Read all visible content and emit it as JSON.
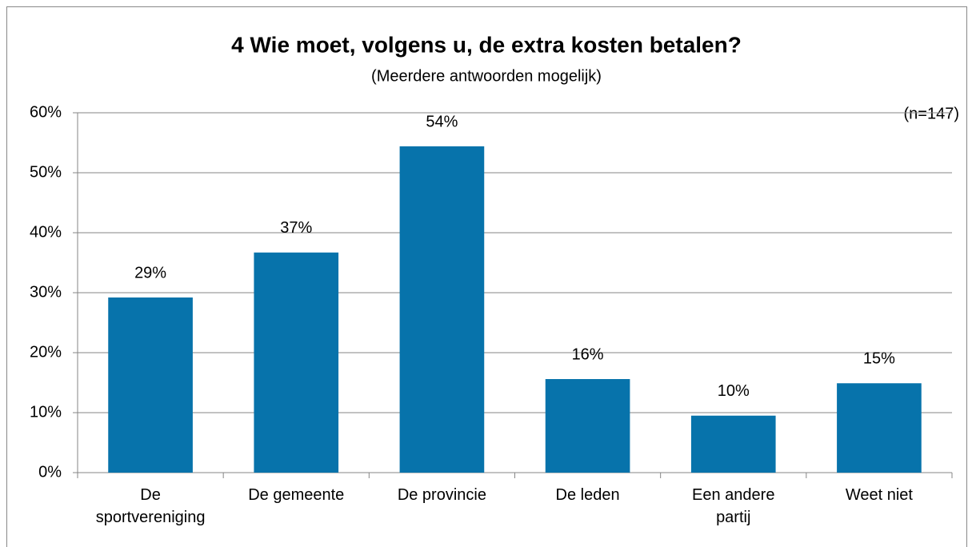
{
  "chart_data": {
    "type": "bar",
    "title": "4 Wie moet, volgens u, de extra kosten betalen?",
    "subtitle": "(Meerdere antwoorden mogelijk)",
    "annotation": "(n=147)",
    "categories": [
      "De sportvereniging",
      "De gemeente",
      "De provincie",
      "De leden",
      "Een andere partij",
      "Weet niet"
    ],
    "values": [
      29.2,
      36.7,
      54.4,
      15.6,
      9.5,
      14.9
    ],
    "value_labels": [
      "29%",
      "37%",
      "54%",
      "16%",
      "10%",
      "15%"
    ],
    "color": "#0773ab",
    "ylim": [
      0,
      60
    ],
    "yticks": [
      {
        "value": 0,
        "label": "0%"
      },
      {
        "value": 10,
        "label": "10%"
      },
      {
        "value": 20,
        "label": "20%"
      },
      {
        "value": 30,
        "label": "30%"
      },
      {
        "value": 40,
        "label": "40%"
      },
      {
        "value": 50,
        "label": "50%"
      },
      {
        "value": 60,
        "label": "60%"
      }
    ],
    "grid": true
  }
}
